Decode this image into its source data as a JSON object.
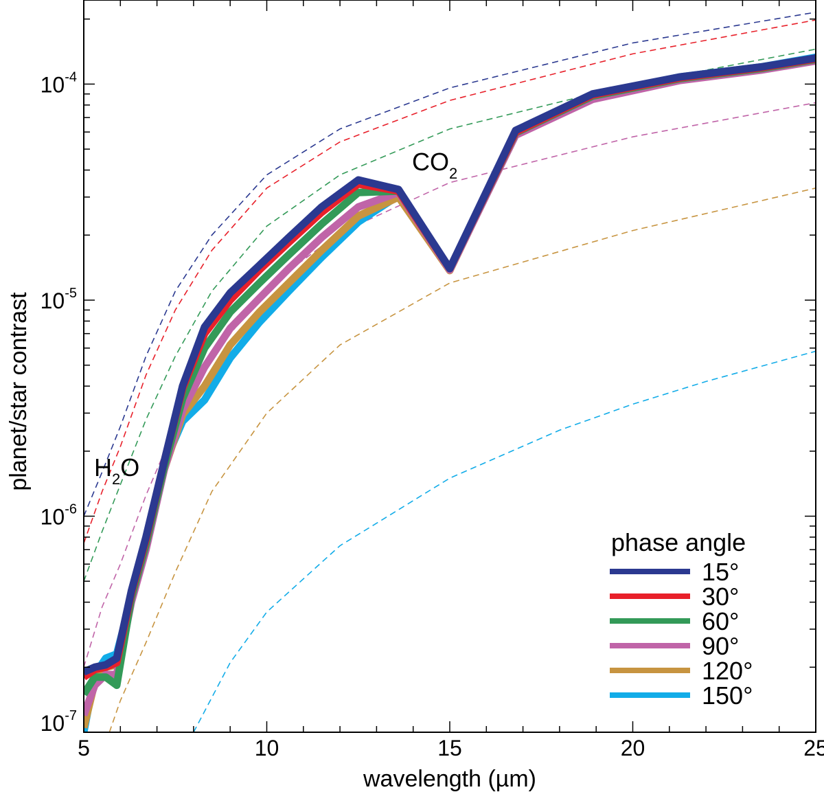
{
  "chart_data": {
    "type": "line",
    "xlabel": "wavelength (µm)",
    "ylabel": "planet/star contrast",
    "xlim": [
      5,
      25
    ],
    "ylim": [
      1e-07,
      0.000245
    ],
    "yscale": "log",
    "grid": false,
    "x_ticks": [
      {
        "value": 5,
        "label": "5"
      },
      {
        "value": 10,
        "label": "10"
      },
      {
        "value": 15,
        "label": "15"
      },
      {
        "value": 20,
        "label": "20"
      },
      {
        "value": 25,
        "label": "25"
      }
    ],
    "y_ticks": [
      {
        "value": 1e-07,
        "base": "10",
        "exp": "-7"
      },
      {
        "value": 1e-06,
        "base": "10",
        "exp": "-6"
      },
      {
        "value": 1e-05,
        "base": "10",
        "exp": "-5"
      },
      {
        "value": 0.0001,
        "base": "10",
        "exp": "-4"
      }
    ],
    "legend": {
      "title": "phase angle",
      "position": "bottom-right",
      "entries": [
        {
          "label": "15°",
          "color": "#2b3990"
        },
        {
          "label": "30°",
          "color": "#e8202a"
        },
        {
          "label": "60°",
          "color": "#339a58"
        },
        {
          "label": "90°",
          "color": "#c064a8"
        },
        {
          "label": "120°",
          "color": "#c79440"
        },
        {
          "label": "150°",
          "color": "#12ace8"
        }
      ]
    },
    "annotations": [
      {
        "base": "H",
        "sub": "2",
        "tail": "O"
      },
      {
        "base": "CO",
        "sub": "2",
        "tail": ""
      }
    ],
    "series": [
      {
        "name": "15°",
        "color": "#2b3990",
        "x": [
          5,
          5.3,
          5.6,
          5.9,
          6.3,
          6.7,
          7.2,
          7.7,
          8.3,
          9,
          9.8,
          10.6,
          11.5,
          12.5,
          13.6,
          15,
          16.8,
          18.9,
          21.3,
          23.5,
          25
        ],
        "y": [
          1.9e-07,
          2e-07,
          2.05e-07,
          2.2e-07,
          4.5e-07,
          8e-07,
          1.8e-06,
          4e-06,
          7.5e-06,
          1.08e-05,
          1.45e-05,
          1.95e-05,
          2.7e-05,
          3.6e-05,
          3.25e-05,
          1.4e-05,
          6.1e-05,
          9e-05,
          0.000108,
          0.00012,
          0.000132
        ]
      },
      {
        "name": "30°",
        "color": "#e8202a",
        "x": [
          5,
          5.3,
          5.6,
          5.9,
          6.3,
          6.7,
          7.2,
          7.7,
          8.3,
          9,
          9.8,
          10.6,
          11.5,
          12.5,
          13.6,
          15,
          16.8,
          18.9,
          21.3,
          23.5,
          25
        ],
        "y": [
          1.8e-07,
          1.95e-07,
          2e-07,
          2.1e-07,
          4.4e-07,
          7.8e-07,
          1.8e-06,
          3.9e-06,
          7e-06,
          1e-05,
          1.38e-05,
          1.85e-05,
          2.55e-05,
          3.45e-05,
          3.2e-05,
          1.4e-05,
          6e-05,
          8.9e-05,
          0.000107,
          0.000119,
          0.000131
        ]
      },
      {
        "name": "60°",
        "color": "#339a58",
        "x": [
          5,
          5.3,
          5.6,
          5.9,
          6.3,
          6.7,
          7.2,
          7.7,
          8.3,
          9,
          9.8,
          10.6,
          11.5,
          12.5,
          13.6,
          15,
          16.8,
          18.9,
          21.3,
          23.5,
          25
        ],
        "y": [
          1.5e-07,
          1.8e-07,
          1.8e-07,
          1.65e-07,
          4.2e-07,
          7.4e-07,
          1.7e-06,
          3.5e-06,
          6e-06,
          8.8e-06,
          1.2e-05,
          1.62e-05,
          2.25e-05,
          3.15e-05,
          3.2e-05,
          1.4e-05,
          5.95e-05,
          8.8e-05,
          0.000106,
          0.000118,
          0.00013
        ]
      },
      {
        "name": "90°",
        "color": "#c064a8",
        "x": [
          5,
          5.3,
          5.6,
          5.9,
          6.3,
          6.7,
          7.2,
          7.7,
          8.3,
          9,
          9.8,
          10.6,
          11.5,
          12.5,
          13.6,
          15,
          16.8,
          18.9,
          21.3,
          23.5,
          25
        ],
        "y": [
          1.2e-07,
          1.65e-07,
          1.85e-07,
          1.85e-07,
          4e-07,
          7e-07,
          1.65e-06,
          3.1e-06,
          4.9e-06,
          7.4e-06,
          1.02e-05,
          1.4e-05,
          1.95e-05,
          2.7e-05,
          3.15e-05,
          1.38e-05,
          5.8e-05,
          8.5e-05,
          0.000104,
          0.000116,
          0.000128
        ]
      },
      {
        "name": "120°",
        "color": "#c79440",
        "x": [
          5,
          5.3,
          5.6,
          5.9,
          6.3,
          6.7,
          7.2,
          7.7,
          8.3,
          9,
          9.8,
          10.6,
          11.5,
          12.5,
          13.6,
          15,
          16.8,
          18.9,
          21.3,
          23.5,
          25
        ],
        "y": [
          1.05e-07,
          1.7e-07,
          2e-07,
          2.05e-07,
          4.1e-07,
          7.2e-07,
          1.65e-06,
          2.95e-06,
          4e-06,
          6.2e-06,
          8.8e-06,
          1.2e-05,
          1.7e-05,
          2.45e-05,
          3e-05,
          1.37e-05,
          5.9e-05,
          8.7e-05,
          0.000105,
          0.000117,
          0.000129
        ]
      },
      {
        "name": "150°",
        "color": "#12ace8",
        "x": [
          5,
          5.3,
          5.6,
          5.9,
          6.3,
          6.7,
          7.2,
          7.7,
          8.3,
          9,
          9.8,
          10.6,
          11.5,
          12.5,
          13.6,
          15,
          16.8,
          18.9,
          21.3,
          23.5,
          25
        ],
        "y": [
          1e-07,
          1.85e-07,
          2.2e-07,
          2.3e-07,
          4.2e-07,
          7.5e-07,
          1.75e-06,
          2.75e-06,
          3.45e-06,
          5.4e-06,
          7.9e-06,
          1.1e-05,
          1.58e-05,
          2.3e-05,
          3.05e-05,
          1.4e-05,
          6e-05,
          8.9e-05,
          0.000108,
          0.00012,
          0.000133
        ]
      }
    ],
    "reference_curves": [
      {
        "name": "15° reference",
        "color": "#2b3990",
        "x": [
          5,
          5.5,
          6,
          6.7,
          7.5,
          8.5,
          10,
          12,
          15,
          20,
          25
        ],
        "y": [
          1e-06,
          1.6e-06,
          2.6e-06,
          5.5e-06,
          1.1e-05,
          2e-05,
          3.8e-05,
          6.2e-05,
          9.6e-05,
          0.000155,
          0.000215
        ]
      },
      {
        "name": "30° reference",
        "color": "#e8202a",
        "x": [
          5,
          5.5,
          6,
          6.7,
          7.5,
          8.5,
          10,
          12,
          15,
          20,
          25
        ],
        "y": [
          7.5e-07,
          1.3e-06,
          2.1e-06,
          4.5e-06,
          9e-06,
          1.7e-05,
          3.3e-05,
          5.4e-05,
          8.4e-05,
          0.000138,
          0.000198
        ]
      },
      {
        "name": "60° reference",
        "color": "#339a58",
        "x": [
          5,
          5.5,
          6,
          6.7,
          7.5,
          8.5,
          10,
          12,
          15,
          20,
          25
        ],
        "y": [
          5e-07,
          8.5e-07,
          1.4e-06,
          2.8e-06,
          5.5e-06,
          1.1e-05,
          2.2e-05,
          3.8e-05,
          6.2e-05,
          0.0001,
          0.000145
        ]
      },
      {
        "name": "90° reference",
        "color": "#c064a8",
        "x": [
          5,
          5.5,
          6,
          6.7,
          7.5,
          8.5,
          10,
          12,
          15,
          20,
          25
        ],
        "y": [
          2e-07,
          3.8e-07,
          6e-07,
          1.25e-06,
          2.6e-06,
          5.4e-06,
          1.15e-05,
          2.05e-05,
          3.5e-05,
          5.7e-05,
          8.2e-05
        ]
      },
      {
        "name": "120° reference",
        "color": "#c79440",
        "x": [
          5.7,
          6,
          6.7,
          7.5,
          8.5,
          10,
          12,
          15,
          20,
          25
        ],
        "y": [
          1e-07,
          1.4e-07,
          2.6e-07,
          5.5e-07,
          1.3e-06,
          3e-06,
          6.2e-06,
          1.2e-05,
          2.1e-05,
          3.3e-05
        ]
      },
      {
        "name": "150° reference",
        "color": "#12ace8",
        "x": [
          8.0,
          9,
          10,
          12,
          15,
          18,
          20,
          22,
          25
        ],
        "y": [
          1e-07,
          2.1e-07,
          3.6e-07,
          7.3e-07,
          1.5e-06,
          2.5e-06,
          3.3e-06,
          4.2e-06,
          5.8e-06
        ]
      }
    ]
  }
}
